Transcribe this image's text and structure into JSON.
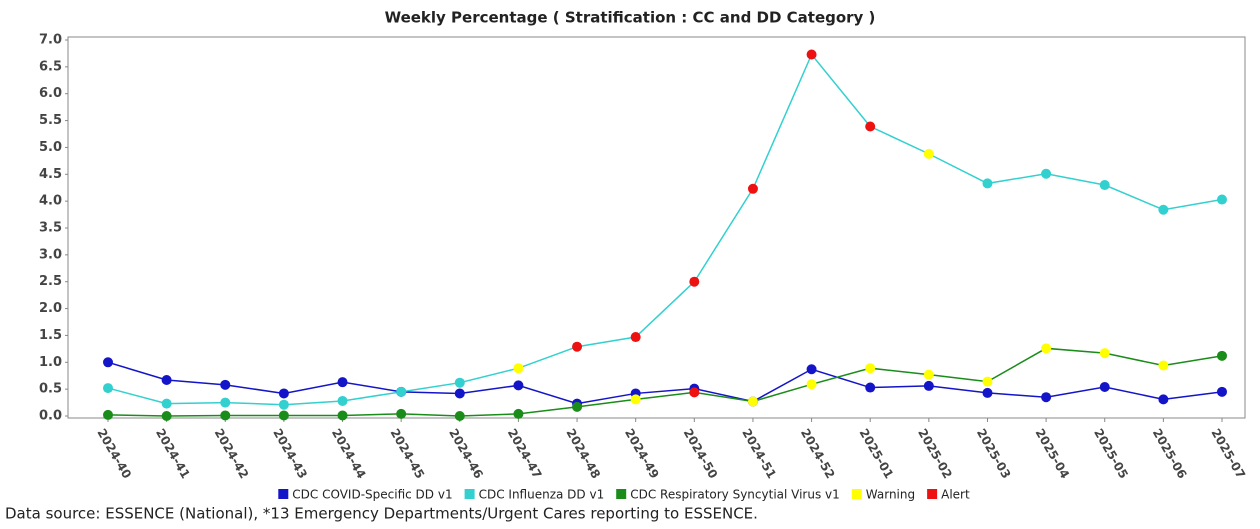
{
  "chart_data": {
    "type": "line",
    "title": "Weekly Percentage ( Stratification : CC and DD Category )",
    "categories": [
      "2024-40",
      "2024-41",
      "2024-42",
      "2024-43",
      "2024-44",
      "2024-45",
      "2024-46",
      "2024-47",
      "2024-48",
      "2024-49",
      "2024-50",
      "2024-51",
      "2024-52",
      "2025-01",
      "2025-02",
      "2025-03",
      "2025-04",
      "2025-05",
      "2025-06",
      "2025-07"
    ],
    "series": [
      {
        "name": "CDC COVID-Specific DD v1",
        "color": "#1414c8",
        "values": [
          1.0,
          0.67,
          0.58,
          0.42,
          0.63,
          0.45,
          0.42,
          0.57,
          0.23,
          0.42,
          0.51,
          0.27,
          0.87,
          0.53,
          0.56,
          0.43,
          0.35,
          0.54,
          0.31,
          0.45
        ],
        "point_colors": [
          "#1414c8",
          "#1414c8",
          "#1414c8",
          "#1414c8",
          "#1414c8",
          "#1414c8",
          "#1414c8",
          "#1414c8",
          "#1414c8",
          "#1414c8",
          "#1414c8",
          "#1414c8",
          "#1414c8",
          "#1414c8",
          "#1414c8",
          "#1414c8",
          "#1414c8",
          "#1414c8",
          "#1414c8",
          "#1414c8"
        ]
      },
      {
        "name": "CDC Influenza DD v1",
        "color": "#33d0d0",
        "values": [
          0.52,
          0.23,
          0.25,
          0.21,
          0.28,
          0.45,
          0.62,
          0.89,
          1.29,
          1.47,
          2.5,
          4.23,
          6.73,
          5.39,
          4.88,
          4.33,
          4.51,
          4.3,
          3.84,
          4.03
        ],
        "point_colors": [
          "#33d0d0",
          "#33d0d0",
          "#33d0d0",
          "#33d0d0",
          "#33d0d0",
          "#33d0d0",
          "#33d0d0",
          "#ffff00",
          "#ee1111",
          "#ee1111",
          "#ee1111",
          "#ee1111",
          "#ee1111",
          "#ee1111",
          "#ffff00",
          "#33d0d0",
          "#33d0d0",
          "#33d0d0",
          "#33d0d0",
          "#33d0d0"
        ]
      },
      {
        "name": "CDC Respiratory Syncytial Virus v1",
        "color": "#1a8c1a",
        "values": [
          0.02,
          0.0,
          0.01,
          0.01,
          0.01,
          0.04,
          0.0,
          0.04,
          0.17,
          0.31,
          0.44,
          0.27,
          0.59,
          0.89,
          0.77,
          0.64,
          1.26,
          1.17,
          0.94,
          1.12
        ],
        "point_colors": [
          "#1a8c1a",
          "#1a8c1a",
          "#1a8c1a",
          "#1a8c1a",
          "#1a8c1a",
          "#1a8c1a",
          "#1a8c1a",
          "#1a8c1a",
          "#1a8c1a",
          "#ffff00",
          "#ee1111",
          "#ffff00",
          "#ffff00",
          "#ffff00",
          "#ffff00",
          "#ffff00",
          "#ffff00",
          "#ffff00",
          "#ffff00",
          "#1a8c1a"
        ]
      }
    ],
    "status_legend": [
      {
        "name": "Warning",
        "color": "#ffff00"
      },
      {
        "name": "Alert",
        "color": "#ee1111"
      }
    ],
    "ylim": [
      0,
      7
    ],
    "yticks": [
      {
        "value": 0,
        "label": "0.0"
      },
      0.5,
      {
        "value": 1,
        "label": "1.0"
      },
      1.5,
      {
        "value": 2,
        "label": "2.0"
      },
      2.5,
      {
        "value": 3,
        "label": "3.0"
      },
      3.5,
      {
        "value": 4,
        "label": "4.0"
      },
      4.5,
      {
        "value": 5,
        "label": "5.0"
      },
      5.5,
      {
        "value": 6,
        "label": "6.0"
      },
      6.5,
      {
        "value": 7,
        "label": "7.0"
      }
    ],
    "footnote": "Data source: ESSENCE (National), *13 Emergency Departments/Urgent Cares reporting to ESSENCE."
  }
}
